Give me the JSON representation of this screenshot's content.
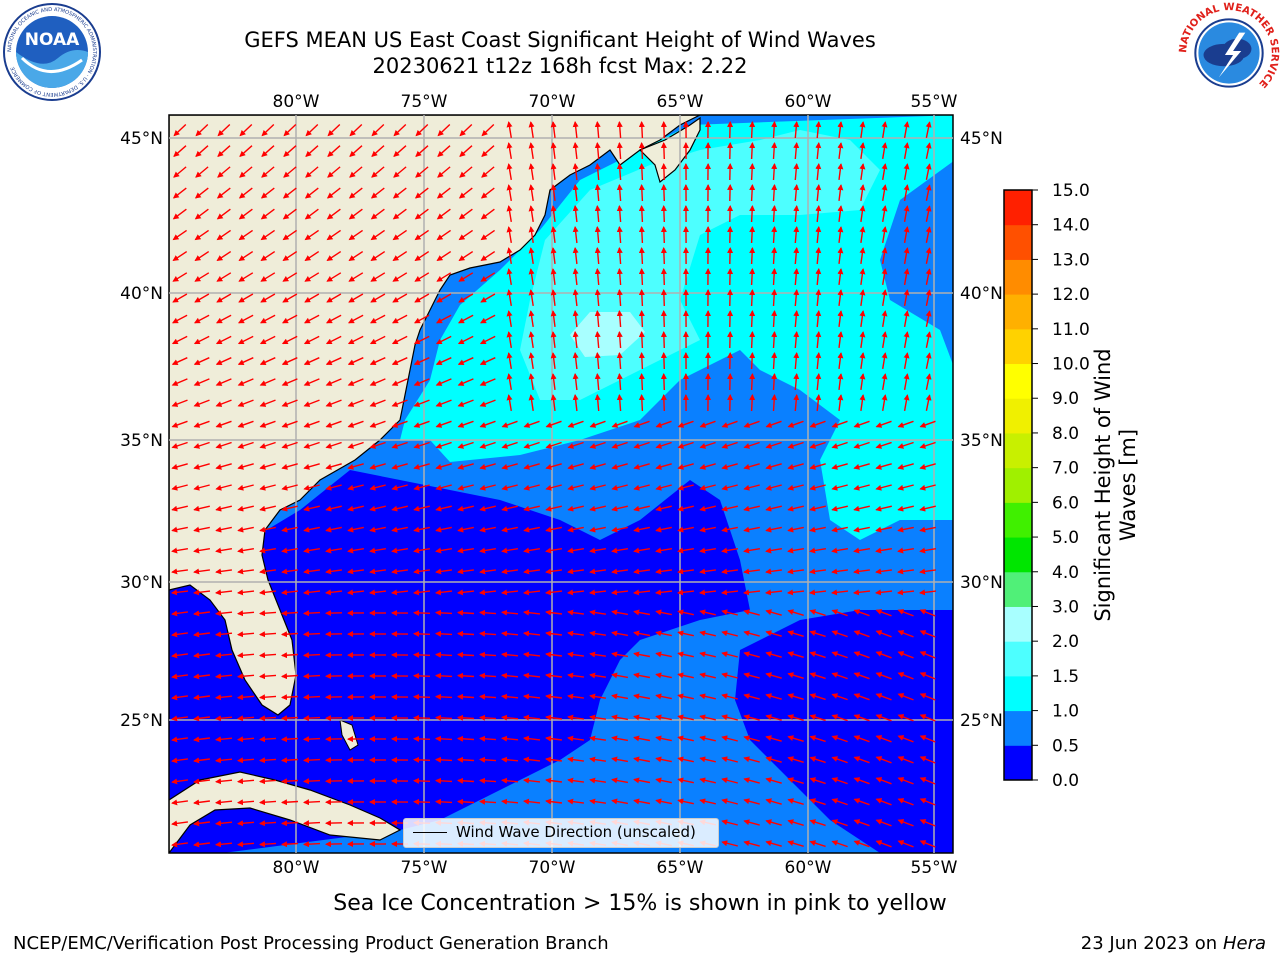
{
  "title_line1": "GEFS MEAN US East Coast Significant Height of Wind Waves",
  "title_line2": "20230621 t12z 168h fcst   Max: 2.22",
  "logos": {
    "noaa_text": "NOAA",
    "noaa_ring": "NATIONAL OCEANIC AND ATMOSPHERIC ADMINISTRATION · U.S. DEPARTMENT OF COMMERCE",
    "nws_ring": "NATIONAL WEATHER SERVICE"
  },
  "map": {
    "lon_labels": [
      "80°W",
      "75°W",
      "70°W",
      "65°W",
      "60°W",
      "55°W"
    ],
    "lat_labels": [
      "45°N",
      "40°N",
      "35°N",
      "30°N",
      "25°N"
    ],
    "extent": {
      "lon": [
        -85,
        -54.3
      ],
      "lat": [
        20.5,
        46.4
      ]
    },
    "land_color": "#efedd9",
    "grid_color": "#b0b0b0",
    "arrow_color": "#ff0000",
    "legend_label": "Wind Wave Direction (unscaled)"
  },
  "colorbar": {
    "label": "Significant Height of Wind Waves [m]",
    "ticks": [
      "0.0",
      "0.5",
      "1.0",
      "1.5",
      "2.0",
      "3.0",
      "4.0",
      "5.0",
      "6.0",
      "7.0",
      "8.0",
      "9.0",
      "10.0",
      "11.0",
      "12.0",
      "13.0",
      "14.0",
      "15.0"
    ],
    "colors": [
      "#0000ff",
      "#0a80ff",
      "#00ffff",
      "#4dffff",
      "#a8ffff",
      "#50f078",
      "#00e600",
      "#40f000",
      "#a0f000",
      "#c8f000",
      "#f0f000",
      "#ffff00",
      "#ffd200",
      "#ffb000",
      "#ff8c00",
      "#ff5000",
      "#ff2000"
    ]
  },
  "subtitle": "Sea Ice Concentration > 15% is shown in pink to yellow",
  "footer_left": "NCEP/EMC/Verification Post Processing Product Generation Branch",
  "footer_right_date": "23 Jun 2023 on",
  "footer_right_host": "Hera"
}
